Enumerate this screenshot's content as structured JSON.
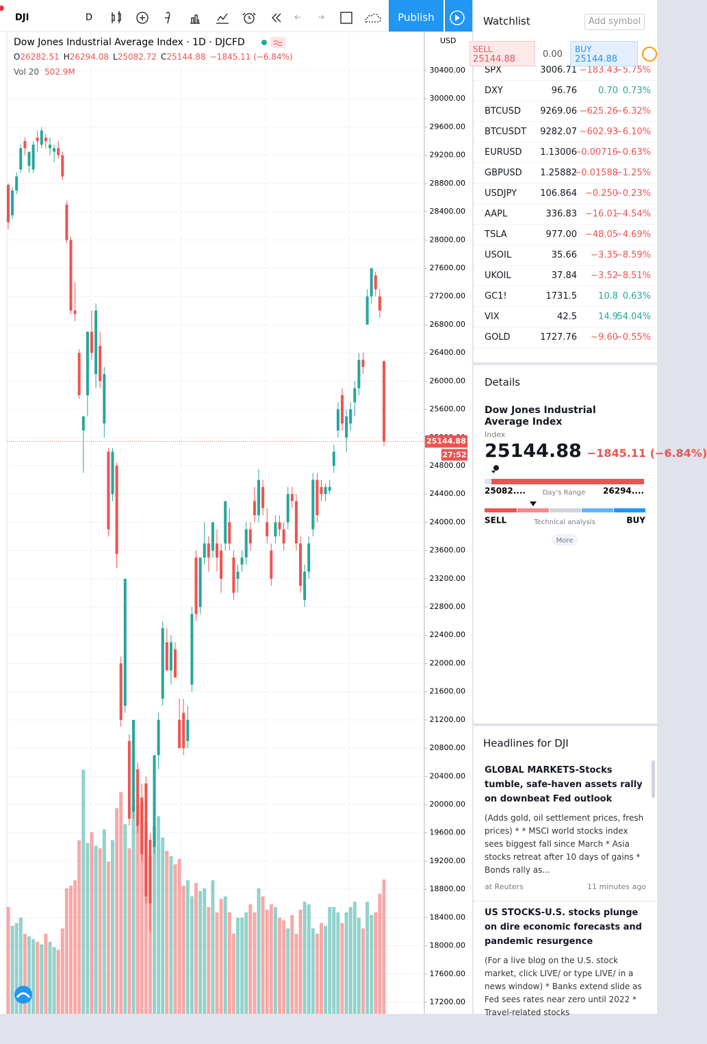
{
  "toolbar": {
    "symbol": "DJI",
    "interval": "D",
    "publish": "Publish"
  },
  "legend": {
    "title": "Dow Jones Industrial Average Index · 1D · DJCFD",
    "o": "O",
    "h": "H",
    "l": "L",
    "c": "C",
    "change": "−1845.11 (−6.84%)",
    "vol_label": "Vol 20",
    "vol_value": "502.9M"
  },
  "chart_data": {
    "type": "candlestick",
    "currency": "USD",
    "countdown": "27:52",
    "up_color": "#26a69a",
    "down_color": "#ef5350",
    "ylim": [
      17200,
      30400
    ],
    "yticks": [
      {
        "value": 17200,
        "label": "17200.00"
      },
      {
        "value": 17600,
        "label": "17600.00"
      },
      {
        "value": 18000,
        "label": "18000.00"
      },
      {
        "value": 18400,
        "label": "18400.00"
      },
      {
        "value": 18800,
        "label": "18800.00"
      },
      {
        "value": 19200,
        "label": "19200.00"
      },
      {
        "value": 19600,
        "label": "19600.00"
      },
      {
        "value": 20000,
        "label": "20000.00"
      },
      {
        "value": 20400,
        "label": "20400.00"
      },
      {
        "value": 20800,
        "label": "20800.00"
      },
      {
        "value": 21200,
        "label": "21200.00"
      },
      {
        "value": 21600,
        "label": "21600.00"
      },
      {
        "value": 22000,
        "label": "22000.00"
      },
      {
        "value": 22400,
        "label": "22400.00"
      },
      {
        "value": 22800,
        "label": "22800.00"
      },
      {
        "value": 23200,
        "label": "23200.00"
      },
      {
        "value": 23600,
        "label": "23600.00"
      },
      {
        "value": 24000,
        "label": "24000.00"
      },
      {
        "value": 24400,
        "label": "24400.00"
      },
      {
        "value": 24800,
        "label": "24800.00"
      },
      {
        "value": 25200,
        "label": "25200.00"
      },
      {
        "value": 25600,
        "label": "25600.00"
      },
      {
        "value": 26000,
        "label": "26000.00"
      },
      {
        "value": 26400,
        "label": "26400.00"
      },
      {
        "value": 26800,
        "label": "26800.00"
      },
      {
        "value": 27200,
        "label": "27200.00"
      },
      {
        "value": 27600,
        "label": "27600.00"
      },
      {
        "value": 28000,
        "label": "28000.00"
      },
      {
        "value": 28400,
        "label": "28400.00"
      },
      {
        "value": 28800,
        "label": "28800.00"
      },
      {
        "value": 29200,
        "label": "29200.00"
      },
      {
        "value": 29600,
        "label": "29600.00"
      },
      {
        "value": 30000,
        "label": "30000.00"
      },
      {
        "value": 30400,
        "label": "30400.00"
      }
    ],
    "ohlc": [
      [
        28780,
        28800,
        28150,
        28250
      ],
      [
        28350,
        28750,
        28300,
        28700
      ],
      [
        28700,
        28960,
        28650,
        28900
      ],
      [
        29000,
        29350,
        28950,
        29300
      ],
      [
        29400,
        29450,
        29200,
        29300
      ],
      [
        29050,
        29250,
        28950,
        29250
      ],
      [
        29000,
        29400,
        28950,
        29350
      ],
      [
        29450,
        29550,
        29250,
        29400
      ],
      [
        29350,
        29600,
        29300,
        29550
      ],
      [
        29450,
        29500,
        29300,
        29400
      ],
      [
        29300,
        29450,
        29200,
        29350
      ],
      [
        29250,
        29350,
        29100,
        29300
      ],
      [
        29300,
        29400,
        29150,
        29200
      ],
      [
        29200,
        29250,
        28850,
        28900
      ],
      [
        28500,
        28550,
        27950,
        28000
      ],
      [
        28000,
        28050,
        26950,
        27000
      ],
      [
        27000,
        27400,
        26850,
        26950
      ],
      [
        26400,
        26450,
        25750,
        25800
      ],
      [
        25300,
        25500,
        24700,
        25500
      ],
      [
        25800,
        26700,
        25500,
        26700
      ],
      [
        26700,
        27000,
        26300,
        26400
      ],
      [
        26100,
        27100,
        25900,
        27000
      ],
      [
        26500,
        26700,
        25900,
        26000
      ],
      [
        25400,
        26200,
        25200,
        26100
      ],
      [
        25000,
        25050,
        23800,
        23900
      ],
      [
        24400,
        25050,
        24300,
        25000
      ],
      [
        24800,
        24850,
        23350,
        23550
      ],
      [
        22000,
        22100,
        21100,
        21200
      ],
      [
        21400,
        23200,
        21300,
        23200
      ],
      [
        20900,
        21000,
        19700,
        19800
      ],
      [
        19900,
        21200,
        19800,
        21200
      ],
      [
        20500,
        20600,
        19600,
        19700
      ],
      [
        20100,
        20300,
        19200,
        19300
      ],
      [
        20300,
        20400,
        18600,
        18700
      ],
      [
        19500,
        19600,
        18200,
        18600
      ],
      [
        19400,
        20700,
        19300,
        20700
      ],
      [
        20700,
        21300,
        20500,
        21200
      ],
      [
        21500,
        22600,
        21400,
        22500
      ],
      [
        22300,
        22500,
        21900,
        21900
      ],
      [
        21900,
        22400,
        21700,
        22300
      ],
      [
        22200,
        22300,
        21800,
        21800
      ],
      [
        21200,
        21500,
        20800,
        20800
      ],
      [
        21300,
        21500,
        20700,
        20800
      ],
      [
        20900,
        21400,
        20800,
        21200
      ],
      [
        21700,
        22800,
        21600,
        22700
      ],
      [
        23500,
        23600,
        22600,
        22700
      ],
      [
        22800,
        23500,
        22700,
        23500
      ],
      [
        23500,
        24000,
        23400,
        23700
      ],
      [
        23700,
        23800,
        23300,
        23500
      ],
      [
        23600,
        24000,
        23500,
        24000
      ],
      [
        23700,
        23900,
        23300,
        23500
      ],
      [
        23600,
        23700,
        23000,
        23200
      ],
      [
        23700,
        24300,
        23600,
        24300
      ],
      [
        24000,
        24200,
        23600,
        23700
      ],
      [
        23500,
        23600,
        22900,
        23000
      ],
      [
        23200,
        23400,
        23000,
        23300
      ],
      [
        23400,
        23600,
        23300,
        23500
      ],
      [
        23500,
        24000,
        23400,
        23900
      ],
      [
        23900,
        24000,
        23600,
        23700
      ],
      [
        24300,
        24500,
        24000,
        24100
      ],
      [
        24100,
        24750,
        24000,
        24600
      ],
      [
        24500,
        24600,
        24100,
        24200
      ],
      [
        24000,
        24200,
        23700,
        23800
      ],
      [
        23600,
        23700,
        23100,
        23200
      ],
      [
        23800,
        24100,
        23700,
        24000
      ],
      [
        24000,
        24100,
        23800,
        23900
      ],
      [
        23900,
        24000,
        23600,
        23700
      ],
      [
        24000,
        24500,
        23900,
        24400
      ],
      [
        24400,
        24500,
        24200,
        24300
      ],
      [
        24300,
        24400,
        23600,
        23700
      ],
      [
        23700,
        23800,
        23000,
        23100
      ],
      [
        22900,
        23400,
        22800,
        23300
      ],
      [
        23300,
        23800,
        23200,
        23700
      ],
      [
        23900,
        24700,
        23800,
        24600
      ],
      [
        24600,
        24700,
        24000,
        24100
      ],
      [
        24500,
        24600,
        24300,
        24400
      ],
      [
        24400,
        24550,
        24300,
        24500
      ],
      [
        24450,
        24600,
        24400,
        24500
      ],
      [
        24800,
        25100,
        24700,
        25000
      ],
      [
        25300,
        25700,
        25200,
        25600
      ],
      [
        25800,
        25900,
        25300,
        25400
      ],
      [
        25200,
        25600,
        25000,
        25500
      ],
      [
        25400,
        25700,
        25300,
        25600
      ],
      [
        25700,
        26000,
        25500,
        25900
      ],
      [
        25900,
        26400,
        25800,
        26300
      ],
      [
        26300,
        26400,
        26100,
        26200
      ],
      [
        26800,
        27300,
        26800,
        27200
      ],
      [
        27200,
        27600,
        27100,
        27600
      ],
      [
        27500,
        27550,
        27200,
        27300
      ],
      [
        27200,
        27300,
        26900,
        27000
      ],
      [
        26282.51,
        26294.08,
        25082.72,
        25144.88
      ]
    ],
    "volume": [
      400,
      330,
      340,
      360,
      300,
      290,
      280,
      270,
      260,
      300,
      270,
      250,
      240,
      320,
      470,
      480,
      500,
      650,
      914,
      640,
      680,
      630,
      620,
      690,
      570,
      650,
      770,
      830,
      710,
      620,
      780,
      780,
      790,
      720,
      590,
      700,
      740,
      660,
      610,
      590,
      560,
      580,
      480,
      500,
      440,
      490,
      460,
      470,
      400,
      500,
      380,
      430,
      440,
      380,
      300,
      360,
      360,
      380,
      410,
      380,
      470,
      440,
      390,
      410,
      400,
      360,
      350,
      320,
      370,
      300,
      390,
      420,
      410,
      320,
      300,
      340,
      330,
      400,
      400,
      380,
      340,
      380,
      400,
      420,
      360,
      320,
      420,
      370,
      380,
      450,
      502.9
    ]
  },
  "watchlist": {
    "title": "Watchlist",
    "add": "Add symbol",
    "sell": "SELL",
    "buy": "BUY",
    "spread": "0.00",
    "rows": [
      [
        "SPX",
        "3006.71",
        "−183.43",
        "−5.75%"
      ],
      [
        "DXY",
        "96.76",
        "0.70",
        "0.73%"
      ],
      [
        "BTCUSD",
        "9269.06",
        "−625.26",
        "−6.32%"
      ],
      [
        "BTCUSDT",
        "9282.07",
        "−602.93",
        "−6.10%"
      ],
      [
        "EURUSD",
        "1.13006",
        "−0.00716",
        "−0.63%"
      ],
      [
        "GBPUSD",
        "1.25882",
        "−0.01588",
        "−1.25%"
      ],
      [
        "USDJPY",
        "106.864",
        "−0.250",
        "−0.23%"
      ],
      [
        "AAPL",
        "336.83",
        "−16.01",
        "−4.54%"
      ],
      [
        "TSLA",
        "977.00",
        "−48.05",
        "−4.69%"
      ],
      [
        "USOIL",
        "35.66",
        "−3.35",
        "−8.59%"
      ],
      [
        "UKOIL",
        "37.84",
        "−3.52",
        "−8.51%"
      ],
      [
        "GC1!",
        "1731.5",
        "10.8",
        "0.63%"
      ],
      [
        "VIX",
        "42.5",
        "14.9",
        "54.04%"
      ],
      [
        "GOLD",
        "1727.76",
        "−9.60",
        "−0.55%"
      ]
    ]
  },
  "details": {
    "title": "Details",
    "name": "Dow Jones Industrial Average Index",
    "kind": "Index",
    "change": "−1845.11 (−6.84%)",
    "low": "25082....",
    "range": "Day's Range",
    "high": "26294....",
    "sell": "SELL",
    "ta": "Technical analysis",
    "buy": "BUY",
    "more": "More"
  },
  "headlines": {
    "title": "Headlines for DJI",
    "items": [
      {
        "title": "GLOBAL MARKETS-Stocks tumble, safe-haven assets rally on downbeat Fed outlook",
        "body": "(Adds gold, oil settlement prices, fresh prices) * * MSCI world stocks index sees biggest fall since March * Asia stocks retreat after 10 days of gains * Bonds rally as...",
        "source": "at Reuters",
        "time": "11 minutes ago"
      },
      {
        "title": "US STOCKS-U.S. stocks plunge on dire economic forecasts and pandemic resurgence",
        "body": "(For a live blog on the U.S. stock market, click LIVE/ or type LIVE/ in a news window) * Banks extend slide as Fed sees rates near zero until 2022 * Travel-related stocks",
        "source": "",
        "time": ""
      }
    ]
  }
}
